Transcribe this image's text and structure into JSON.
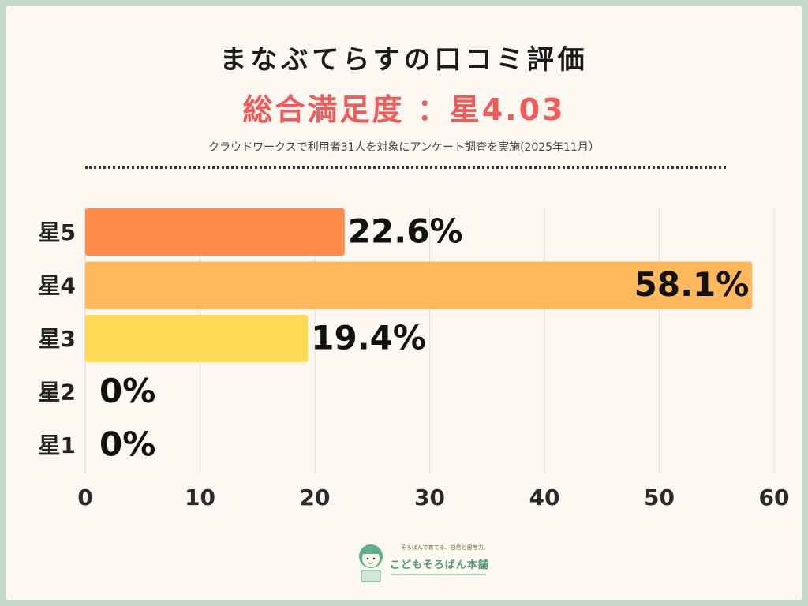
{
  "header": {
    "title": "まなぶてらすの口コミ評価",
    "subtitle": "総合満足度 ：星4.03",
    "note": "クラウドワークスで利用者31人を対象にアンケート調査を実施(2025年11月）"
  },
  "colors": {
    "subtitle": "#f05a5a",
    "star5": "#ff8c4b",
    "star4": "#ffb85b",
    "star3": "#ffda55",
    "star2": "#ffe98a",
    "star1": "#ffe98a"
  },
  "chart_data": {
    "type": "bar",
    "orientation": "horizontal",
    "categories": [
      "星5",
      "星4",
      "星3",
      "星2",
      "星1"
    ],
    "values": [
      22.6,
      58.1,
      19.4,
      0,
      0
    ],
    "labels": [
      "22.6%",
      "58.1%",
      "19.4%",
      "0%",
      "0%"
    ],
    "xticks": [
      "0",
      "10",
      "20",
      "30",
      "40",
      "50",
      "60"
    ],
    "xlim": [
      0,
      60
    ],
    "grid": "vertical",
    "legend": "none"
  },
  "logo": {
    "tagline": "そろばんで育てる、自信と思考力。",
    "name": "こどもそろばん本舗"
  }
}
